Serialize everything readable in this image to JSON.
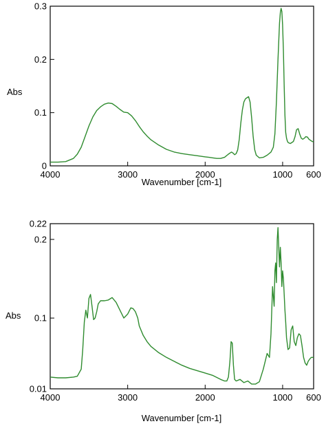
{
  "chart_data": [
    {
      "type": "line",
      "title": "",
      "xlabel": "Wavenumber [cm-1]",
      "ylabel": "Abs",
      "xlim": [
        4000,
        600
      ],
      "ylim": [
        0,
        0.3
      ],
      "x_reversed": true,
      "grid": false,
      "xticks": [
        4000,
        3000,
        2000,
        1000,
        600
      ],
      "xtick_labels": [
        "4000",
        "3000",
        "2000",
        "1000",
        "600"
      ],
      "yticks": [
        0,
        0.1,
        0.2,
        0.3
      ],
      "ytick_labels": [
        "0",
        "0.1",
        "0.2",
        "0.3"
      ],
      "color": "#2e8b2e",
      "series": [
        {
          "x": [
            4000,
            3900,
            3800,
            3700,
            3650,
            3600,
            3550,
            3500,
            3450,
            3400,
            3350,
            3300,
            3250,
            3200,
            3150,
            3100,
            3050,
            3000,
            2950,
            2900,
            2850,
            2800,
            2750,
            2700,
            2600,
            2500,
            2400,
            2300,
            2200,
            2100,
            2000,
            1950,
            1900,
            1850,
            1800,
            1750,
            1700,
            1680,
            1660,
            1640,
            1620,
            1600,
            1580,
            1560,
            1540,
            1520,
            1500,
            1480,
            1460,
            1440,
            1420,
            1400,
            1380,
            1360,
            1340,
            1300,
            1250,
            1200,
            1150,
            1120,
            1100,
            1080,
            1060,
            1040,
            1030,
            1020,
            1010,
            1000,
            990,
            980,
            970,
            960,
            950,
            940,
            930,
            920,
            900,
            880,
            860,
            840,
            820,
            800,
            780,
            760,
            740,
            720,
            700,
            680,
            660,
            640,
            620,
            600
          ],
          "y": [
            0.007,
            0.007,
            0.008,
            0.014,
            0.022,
            0.035,
            0.055,
            0.075,
            0.092,
            0.104,
            0.111,
            0.116,
            0.118,
            0.117,
            0.112,
            0.106,
            0.101,
            0.1,
            0.094,
            0.085,
            0.074,
            0.064,
            0.056,
            0.049,
            0.039,
            0.031,
            0.026,
            0.023,
            0.021,
            0.019,
            0.017,
            0.016,
            0.015,
            0.014,
            0.014,
            0.016,
            0.022,
            0.024,
            0.026,
            0.024,
            0.021,
            0.023,
            0.03,
            0.05,
            0.08,
            0.105,
            0.12,
            0.126,
            0.128,
            0.13,
            0.12,
            0.09,
            0.055,
            0.03,
            0.02,
            0.015,
            0.016,
            0.02,
            0.026,
            0.035,
            0.06,
            0.12,
            0.2,
            0.268,
            0.288,
            0.296,
            0.29,
            0.265,
            0.215,
            0.15,
            0.095,
            0.063,
            0.052,
            0.047,
            0.044,
            0.043,
            0.042,
            0.044,
            0.046,
            0.055,
            0.068,
            0.07,
            0.06,
            0.052,
            0.05,
            0.052,
            0.055,
            0.054,
            0.05,
            0.048,
            0.046,
            0.045
          ]
        }
      ]
    },
    {
      "type": "line",
      "title": "",
      "xlabel": "Wavenumber [cm-1]",
      "ylabel": "Abs",
      "xlim": [
        4000,
        600
      ],
      "ylim": [
        0.01,
        0.22
      ],
      "x_reversed": true,
      "grid": false,
      "xticks": [
        4000,
        3000,
        2000,
        1000,
        600
      ],
      "xtick_labels": [
        "4000",
        "3000",
        "2000",
        "1000",
        "600"
      ],
      "yticks": [
        0.01,
        0.1,
        0.2,
        0.22
      ],
      "ytick_labels": [
        "0.01",
        "0.1",
        "0.2",
        "0.22"
      ],
      "color": "#2e8b2e",
      "series": [
        {
          "x": [
            4000,
            3900,
            3800,
            3700,
            3650,
            3600,
            3580,
            3560,
            3540,
            3520,
            3500,
            3480,
            3460,
            3440,
            3420,
            3400,
            3380,
            3350,
            3300,
            3250,
            3200,
            3150,
            3100,
            3050,
            3000,
            2960,
            2930,
            2900,
            2870,
            2850,
            2800,
            2750,
            2700,
            2600,
            2500,
            2400,
            2300,
            2200,
            2100,
            2000,
            1900,
            1800,
            1750,
            1720,
            1700,
            1680,
            1665,
            1650,
            1635,
            1620,
            1600,
            1550,
            1500,
            1450,
            1400,
            1350,
            1300,
            1250,
            1200,
            1170,
            1150,
            1130,
            1110,
            1100,
            1090,
            1080,
            1070,
            1060,
            1050,
            1040,
            1030,
            1020,
            1010,
            1000,
            990,
            980,
            970,
            960,
            950,
            930,
            910,
            890,
            870,
            850,
            830,
            810,
            790,
            770,
            750,
            730,
            710,
            690,
            670,
            650,
            630,
            610,
            600
          ],
          "y": [
            0.025,
            0.024,
            0.024,
            0.025,
            0.026,
            0.035,
            0.06,
            0.095,
            0.11,
            0.1,
            0.125,
            0.13,
            0.115,
            0.098,
            0.1,
            0.108,
            0.118,
            0.122,
            0.122,
            0.123,
            0.126,
            0.12,
            0.11,
            0.1,
            0.105,
            0.113,
            0.112,
            0.108,
            0.1,
            0.09,
            0.078,
            0.07,
            0.064,
            0.056,
            0.05,
            0.045,
            0.04,
            0.036,
            0.033,
            0.03,
            0.027,
            0.022,
            0.02,
            0.02,
            0.025,
            0.045,
            0.07,
            0.068,
            0.04,
            0.022,
            0.02,
            0.022,
            0.018,
            0.02,
            0.016,
            0.016,
            0.019,
            0.035,
            0.055,
            0.05,
            0.08,
            0.14,
            0.115,
            0.16,
            0.17,
            0.145,
            0.2,
            0.215,
            0.19,
            0.165,
            0.19,
            0.17,
            0.14,
            0.16,
            0.15,
            0.13,
            0.11,
            0.095,
            0.075,
            0.06,
            0.062,
            0.085,
            0.09,
            0.07,
            0.065,
            0.075,
            0.08,
            0.078,
            0.065,
            0.05,
            0.043,
            0.04,
            0.045,
            0.048,
            0.05,
            0.05,
            0.05
          ]
        }
      ]
    }
  ]
}
